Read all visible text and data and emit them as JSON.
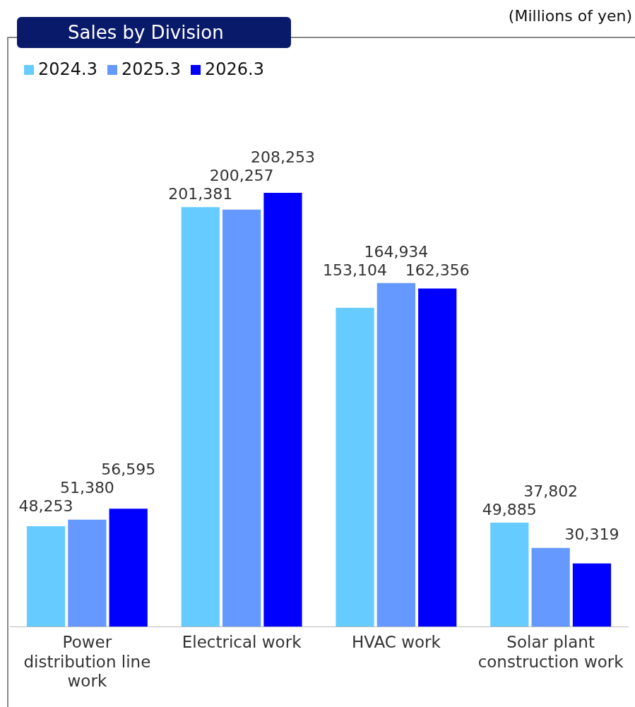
{
  "chart_data": {
    "type": "bar",
    "title": "Sales by Division",
    "annotations": [
      "(Millions of yen)"
    ],
    "categories": [
      "Power distribution line work",
      "Electrical work",
      "HVAC work",
      "Solar plant construction work"
    ],
    "series": [
      {
        "name": "2024.3",
        "color": "#66ccff",
        "values": [
          48253,
          201381,
          153104,
          49885
        ],
        "value_labels": [
          "48,253",
          "201,381",
          "153,104",
          "49,885"
        ]
      },
      {
        "name": "2025.3",
        "color": "#6699ff",
        "values": [
          51380,
          200257,
          164934,
          37802
        ],
        "value_labels": [
          "51,380",
          "200,257",
          "164,934",
          "37,802"
        ]
      },
      {
        "name": "2026.3",
        "color": "#0000ff",
        "values": [
          56595,
          208253,
          162356,
          30319
        ],
        "value_labels": [
          "56,595",
          "208,253",
          "162,356",
          "30,319"
        ]
      }
    ],
    "legend": "top left",
    "grid": false,
    "tick_labels": "x"
  }
}
